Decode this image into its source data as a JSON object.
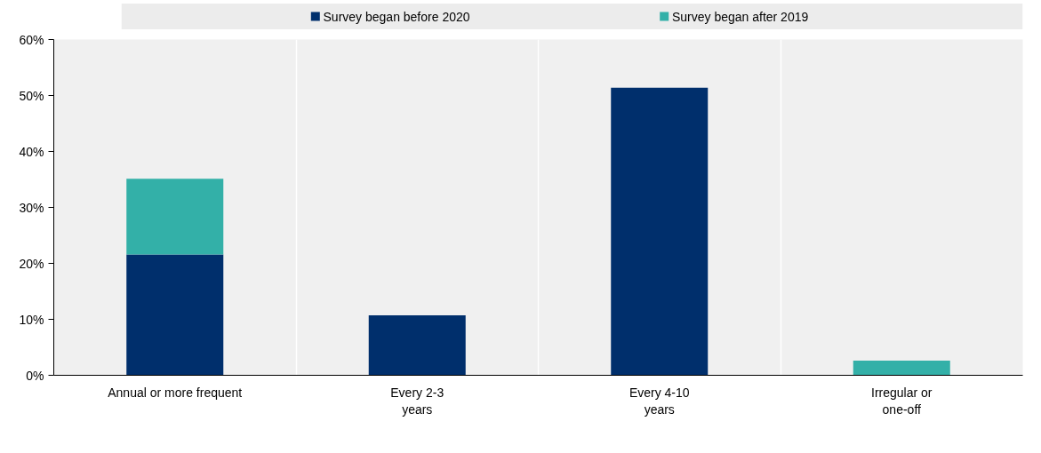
{
  "chart_data": {
    "type": "bar",
    "stacked": true,
    "categories": [
      "Annual or more frequent",
      "Every 2-3\nyears",
      "Every 4-10\nyears",
      "Irregular or\none-off"
    ],
    "series": [
      {
        "name": "Survey began before 2020",
        "color": "#002f6c",
        "values": [
          21.6,
          10.7,
          51.4,
          null
        ]
      },
      {
        "name": "Survey began after 2019",
        "color": "#33b0a8",
        "values": [
          13.5,
          null,
          null,
          2.6
        ]
      }
    ],
    "ylim": [
      0,
      60
    ],
    "yticks": [
      {
        "value": 0,
        "label": "0%"
      },
      {
        "value": 10,
        "label": "10%"
      },
      {
        "value": 20,
        "label": "20%"
      },
      {
        "value": 30,
        "label": "30%"
      },
      {
        "value": 40,
        "label": "40%"
      },
      {
        "value": 50,
        "label": "50%"
      },
      {
        "value": 60,
        "label": "60%"
      }
    ],
    "grid": "x",
    "legend": "top"
  }
}
